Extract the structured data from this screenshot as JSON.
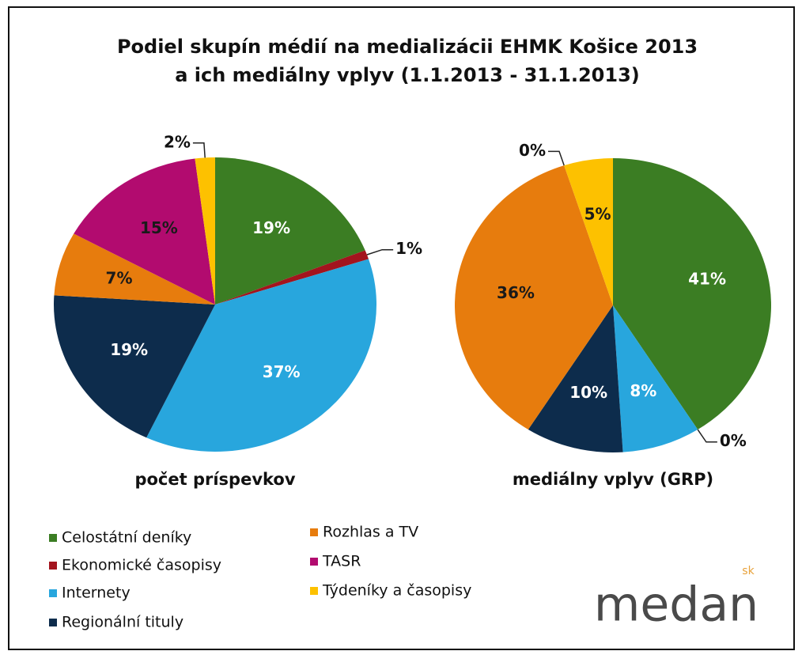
{
  "title": [
    "Podiel skupín médií na medializácii EHMK Košice 2013",
    "a ich mediálny vplyv  (1.1.2013 - 31.1.2013)"
  ],
  "chart_data": [
    {
      "type": "pie",
      "label": "počet príspevkov",
      "categories": [
        "Celostátní deníky",
        "Ekonomické časopisy",
        "Internety",
        "Regionální tituly",
        "Rozhlas a TV",
        "TASR",
        "Týdeníky a časopisy"
      ],
      "colors": [
        "#3b7d23",
        "#a3141e",
        "#28a6dd",
        "#0d2c4c",
        "#e77c0d",
        "#b20b6f",
        "#fdc100"
      ],
      "values": [
        19,
        1,
        37,
        19,
        7,
        15,
        2
      ],
      "value_labels": [
        "19%",
        "1%",
        "37%",
        "19%",
        "7%",
        "15%",
        "2%"
      ]
    },
    {
      "type": "pie",
      "label": "mediálny vplyv (GRP)",
      "categories": [
        "Celostátní deníky",
        "Ekonomické časopisy",
        "Internety",
        "Regionální tituly",
        "Rozhlas a TV",
        "TASR",
        "Týdeníky a časopisy"
      ],
      "colors": [
        "#3b7d23",
        "#a3141e",
        "#28a6dd",
        "#0d2c4c",
        "#e77c0d",
        "#b20b6f",
        "#fdc100"
      ],
      "values": [
        41,
        0,
        8,
        10,
        36,
        0,
        5
      ],
      "value_labels": [
        "41%",
        "0%",
        "8%",
        "10%",
        "36%",
        "0%",
        "5%"
      ]
    }
  ],
  "logo": {
    "name": "medan",
    "suffix": "sk"
  }
}
